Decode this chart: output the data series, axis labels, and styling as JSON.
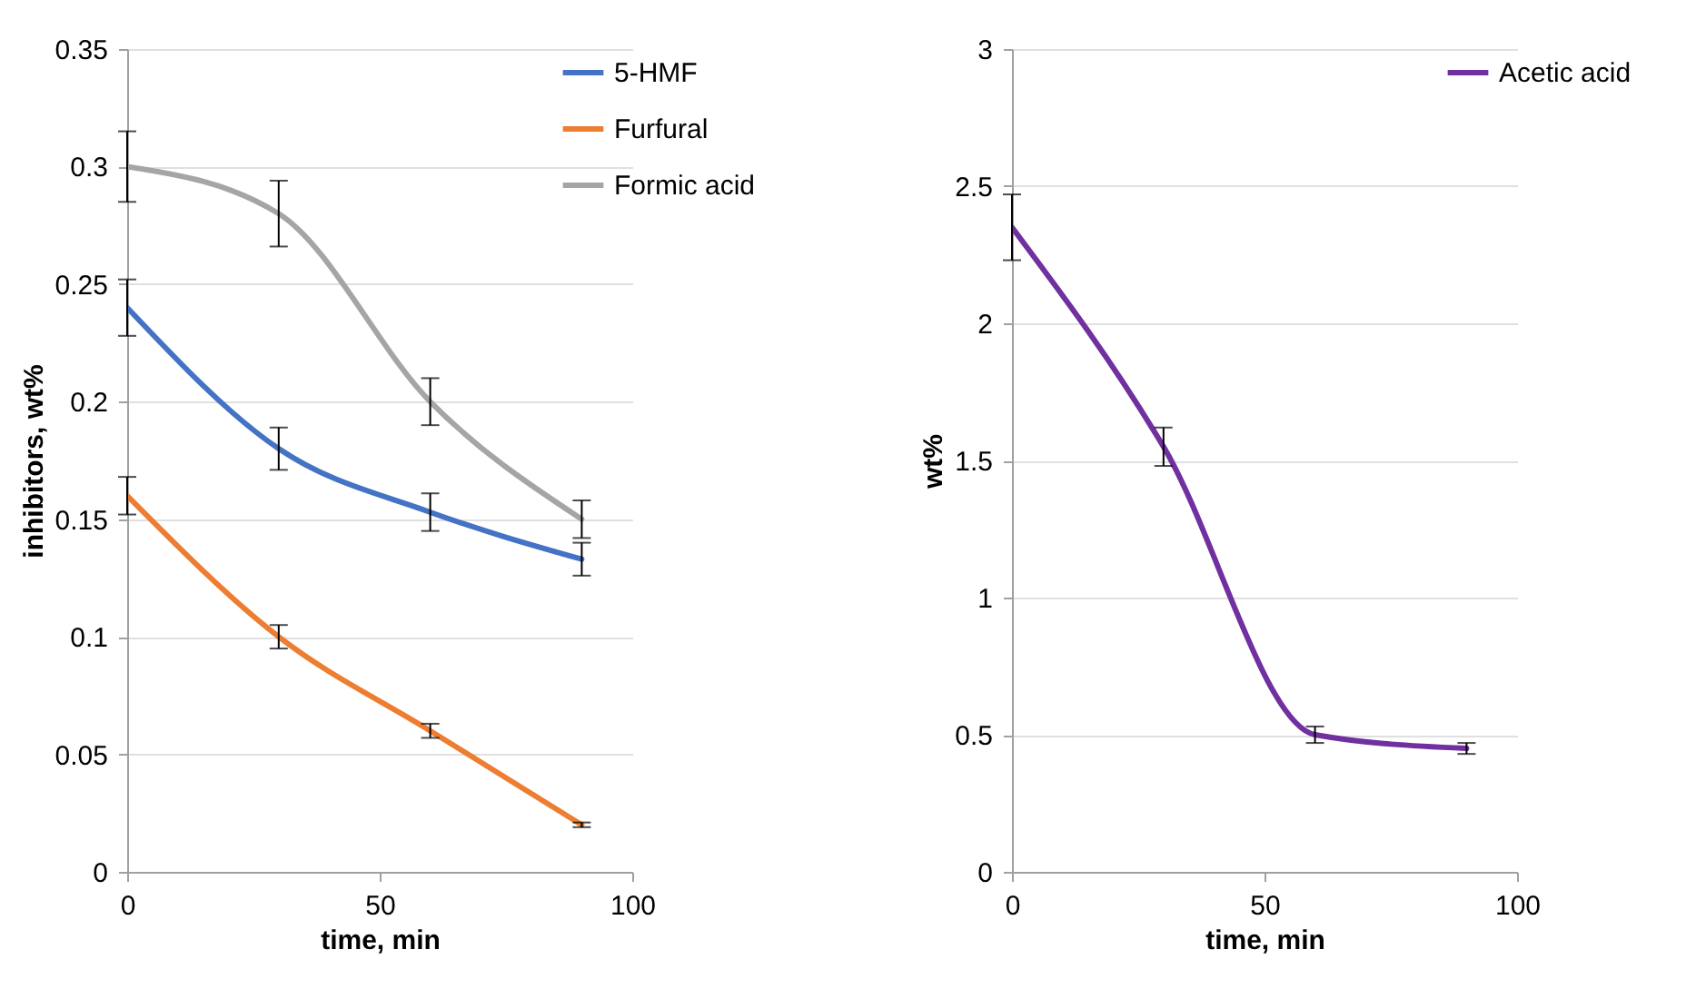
{
  "chart_data": [
    {
      "type": "line",
      "xlabel": "time, min",
      "ylabel": "inhibitors, wt%",
      "x": [
        0,
        30,
        60,
        90
      ],
      "xlim": [
        0,
        100
      ],
      "xticks": [
        0,
        50,
        100
      ],
      "ylim": [
        0,
        0.35
      ],
      "yticks": [
        0,
        0.05,
        0.1,
        0.15,
        0.2,
        0.25,
        0.3,
        0.35
      ],
      "grid": "y",
      "legend": "right",
      "series": [
        {
          "name": "5-HMF",
          "color": "#4472c4",
          "values": [
            0.24,
            0.18,
            0.153,
            0.133
          ],
          "errors": [
            0.012,
            0.009,
            0.008,
            0.007
          ]
        },
        {
          "name": "Furfural",
          "color": "#ed7d31",
          "values": [
            0.16,
            0.1,
            0.06,
            0.02
          ],
          "errors": [
            0.008,
            0.005,
            0.003,
            0.001
          ]
        },
        {
          "name": "Formic acid",
          "color": "#a5a5a5",
          "values": [
            0.3,
            0.28,
            0.2,
            0.15
          ],
          "errors": [
            0.015,
            0.014,
            0.01,
            0.008
          ]
        }
      ]
    },
    {
      "type": "line",
      "xlabel": "time, min",
      "ylabel": "wt%",
      "x": [
        0,
        30,
        60,
        90
      ],
      "xlim": [
        0,
        100
      ],
      "xticks": [
        0,
        50,
        100
      ],
      "ylim": [
        0,
        3
      ],
      "yticks": [
        0,
        0.5,
        1,
        1.5,
        2,
        2.5,
        3
      ],
      "grid": "y",
      "legend": "right",
      "series": [
        {
          "name": "Acetic acid",
          "color": "#7030a0",
          "values": [
            2.35,
            1.55,
            0.5,
            0.45
          ],
          "errors": [
            0.12,
            0.07,
            0.03,
            0.02
          ]
        }
      ]
    }
  ]
}
